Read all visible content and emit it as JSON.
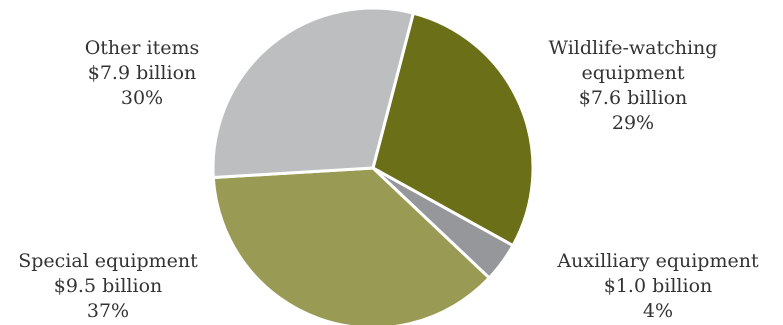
{
  "chart_data": {
    "type": "pie",
    "title": "",
    "start_angle_deg": 14.6,
    "slices": [
      {
        "name": "Wildlife-watching equipment",
        "label_lines": [
          "Wildlife-watching",
          "equipment",
          "$7.6 billion",
          "29%"
        ],
        "amount": 7.6,
        "percent": 29,
        "color": "#6b6f17"
      },
      {
        "name": "Auxilliary equipment",
        "label_lines": [
          "Auxilliary equipment",
          "$1.0 billion",
          "4%"
        ],
        "amount": 1.0,
        "percent": 4,
        "color": "#96979a"
      },
      {
        "name": "Special equipment",
        "label_lines": [
          "Special equipment",
          "$9.5 billion",
          "37%"
        ],
        "amount": 9.5,
        "percent": 37,
        "color": "#999b55"
      },
      {
        "name": "Other items",
        "label_lines": [
          "Other items",
          "$7.9 billion",
          "30%"
        ],
        "amount": 7.9,
        "percent": 30,
        "color": "#bdbec0"
      }
    ]
  }
}
